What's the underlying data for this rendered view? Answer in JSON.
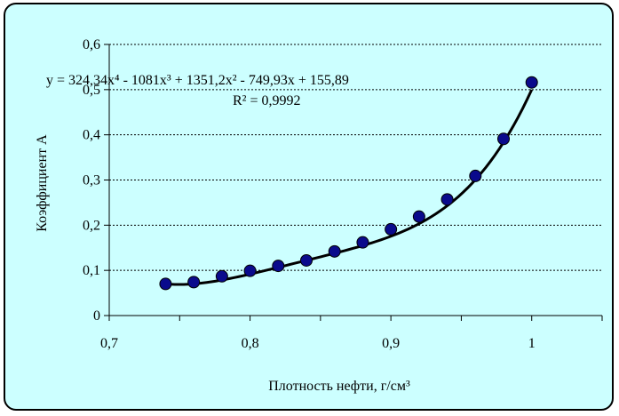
{
  "chart_data": {
    "type": "scatter",
    "xlabel": "Плотность нефти, г/см³",
    "ylabel": "Коэффициент A",
    "xlim": [
      0.7,
      1.05
    ],
    "ylim": [
      0,
      0.6
    ],
    "x_ticks": [
      "0,7",
      "0,8",
      "0,9",
      "1"
    ],
    "y_ticks": [
      "0",
      "0,1",
      "0,2",
      "0,3",
      "0,4",
      "0,5",
      "0,6"
    ],
    "grid": "horizontal",
    "series": [
      {
        "x": [
          0.74,
          0.76,
          0.78,
          0.8,
          0.82,
          0.84,
          0.86,
          0.88,
          0.9,
          0.92,
          0.94,
          0.96,
          0.98,
          1.0
        ],
        "y": [
          0.07,
          0.074,
          0.087,
          0.099,
          0.11,
          0.122,
          0.142,
          0.162,
          0.191,
          0.219,
          0.257,
          0.309,
          0.391,
          0.516
        ],
        "color": "#0a0a8c"
      }
    ],
    "trendline": {
      "type": "polynomial",
      "coefficients": [
        155.89,
        -749.93,
        1351.2,
        -1081,
        324.34
      ],
      "equation": "y = 324,34x⁴ - 1081x³ + 1351,2x² - 749,93x + 155,89",
      "r2": "R² = 0,9992",
      "color": "#000000"
    },
    "colors": {
      "background": "#ccffff",
      "point": "#0a0a8c"
    }
  }
}
